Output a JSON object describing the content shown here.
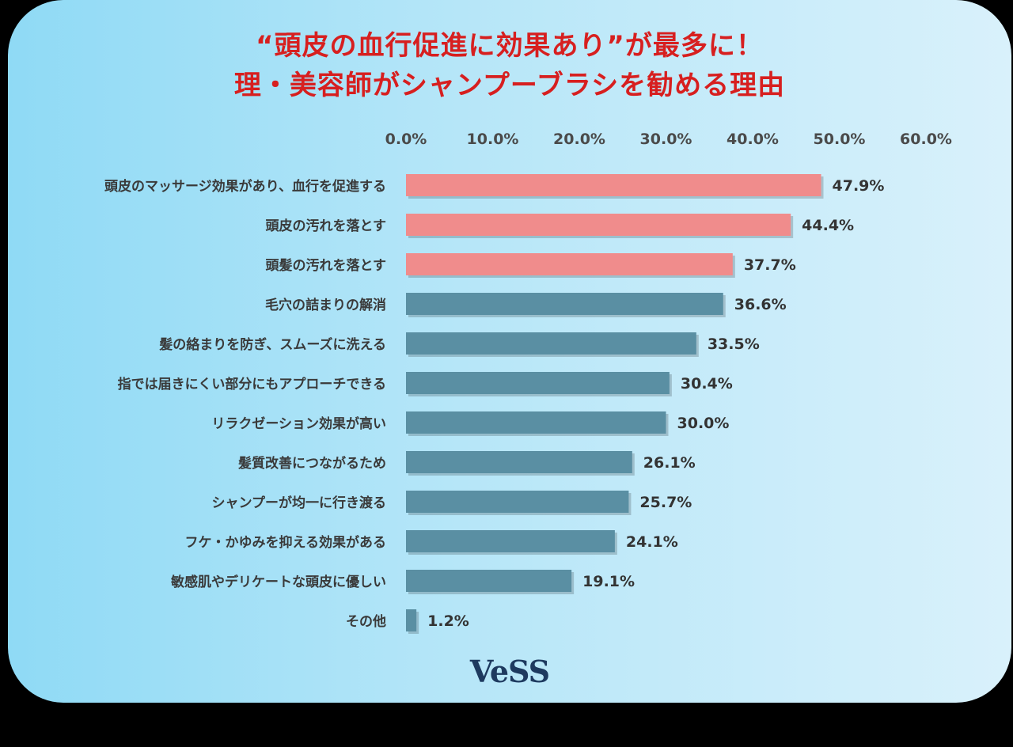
{
  "title": {
    "line1": "“頭皮の血行促進に効果あり”が最多に！",
    "line2": "理・美容師がシャンプーブラシを勧める理由"
  },
  "logo_text": "VeSS",
  "colors": {
    "highlight": "#f08c8c",
    "normal": "#5a8fa3",
    "axis_text": "#4a4a4a",
    "title": "#d71f1f"
  },
  "chart_data": {
    "type": "bar",
    "orientation": "horizontal",
    "x_axis_position": "top",
    "xlim": [
      0,
      60
    ],
    "xticks": [
      "0.0%",
      "10.0%",
      "20.0%",
      "30.0%",
      "40.0%",
      "50.0%",
      "60.0%"
    ],
    "categories": [
      "頭皮のマッサージ効果があり、血行を促進する",
      "頭皮の汚れを落とす",
      "頭髪の汚れを落とす",
      "毛穴の詰まりの解消",
      "髪の絡まりを防ぎ、スムーズに洗える",
      "指では届きにくい部分にもアプローチできる",
      "リラクゼーション効果が高い",
      "髪質改善につながるため",
      "シャンプーが均一に行き渡る",
      "フケ・かゆみを抑える効果がある",
      "敏感肌やデリケートな頭皮に優しい",
      "その他"
    ],
    "values": [
      47.9,
      44.4,
      37.7,
      36.6,
      33.5,
      30.4,
      30.0,
      26.1,
      25.7,
      24.1,
      19.1,
      1.2
    ],
    "value_labels": [
      "47.9%",
      "44.4%",
      "37.7%",
      "36.6%",
      "33.5%",
      "30.4%",
      "30.0%",
      "26.1%",
      "25.7%",
      "24.1%",
      "19.1%",
      "1.2%"
    ],
    "highlighted_top": 3,
    "grid": false
  }
}
